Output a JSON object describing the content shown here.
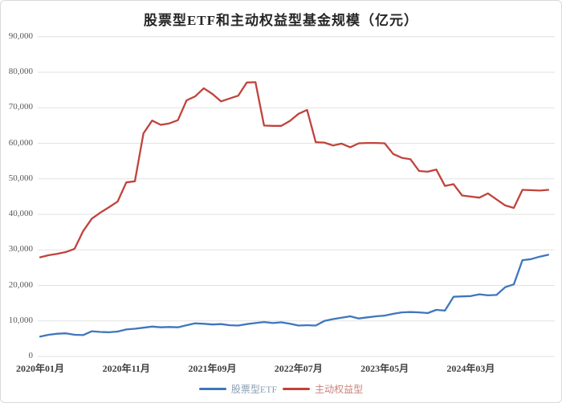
{
  "title": "股票型ETF和主动权益型基金规模（亿元）",
  "colors": {
    "etf_line": "#3f76bd",
    "active_line": "#c0433c",
    "etf_legend_text": "#8da0b5",
    "active_legend_text": "#c9837c",
    "grid": "#e2e2e2",
    "axis_text": "#595959",
    "x_axis_text": "#404040",
    "title_text": "#262626",
    "card_border": "#d9d9d9",
    "background": "#ffffff"
  },
  "chart_data": {
    "type": "line",
    "title": "股票型ETF和主动权益型基金规模（亿元）",
    "x_unit": "month",
    "start_month": "2020年01月",
    "end_month": "2024年12月",
    "months_count": 60,
    "x_ticks": [
      {
        "label": "2020年01月",
        "month_index": 0
      },
      {
        "label": "2020年11月",
        "month_index": 10
      },
      {
        "label": "2021年09月",
        "month_index": 20
      },
      {
        "label": "2022年07月",
        "month_index": 30
      },
      {
        "label": "2023年05月",
        "month_index": 40
      },
      {
        "label": "2024年03月",
        "month_index": 50
      }
    ],
    "ylim": [
      0,
      90000
    ],
    "ytick_step": 10000,
    "ytick_labels_top_down": [
      "90,000",
      "80,000",
      "70,000",
      "60,000",
      "50,000",
      "40,000",
      "30,000",
      "20,000",
      "10,000",
      "0"
    ],
    "grid": "horizontal",
    "legend_position": "bottom",
    "series": [
      {
        "name": "股票型ETF",
        "color_key": "etf_line",
        "legend_text_color_key": "etf_legend_text",
        "values": [
          5600,
          6100,
          6400,
          6500,
          6100,
          6000,
          7100,
          6900,
          6800,
          7000,
          7600,
          7800,
          8100,
          8400,
          8200,
          8300,
          8200,
          8800,
          9300,
          9200,
          9000,
          9100,
          8800,
          8700,
          9100,
          9400,
          9700,
          9400,
          9600,
          9200,
          8700,
          8800,
          8700,
          10000,
          10500,
          10900,
          11300,
          10700,
          11000,
          11300,
          11500,
          12000,
          12400,
          12500,
          12400,
          12200,
          13100,
          12900,
          16800,
          16900,
          17000,
          17500,
          17200,
          17300,
          19500,
          20300,
          27100,
          27400,
          28100,
          28600
        ]
      },
      {
        "name": "主动权益型",
        "color_key": "active_line",
        "legend_text_color_key": "active_legend_text",
        "values": [
          27900,
          28500,
          28900,
          29400,
          30300,
          35300,
          38800,
          40500,
          42000,
          43600,
          49000,
          49300,
          62800,
          66400,
          65200,
          65600,
          66500,
          72100,
          73200,
          75500,
          73900,
          71800,
          72600,
          73400,
          77100,
          77200,
          65000,
          64900,
          64900,
          66300,
          68300,
          69400,
          60300,
          60200,
          59400,
          59900,
          58900,
          60000,
          60100,
          60100,
          60000,
          57000,
          55900,
          55500,
          52200,
          52000,
          52600,
          48000,
          48500,
          45300,
          45000,
          44700,
          45900,
          44200,
          42500,
          41800,
          46900,
          46800,
          46700,
          46900
        ]
      }
    ]
  }
}
